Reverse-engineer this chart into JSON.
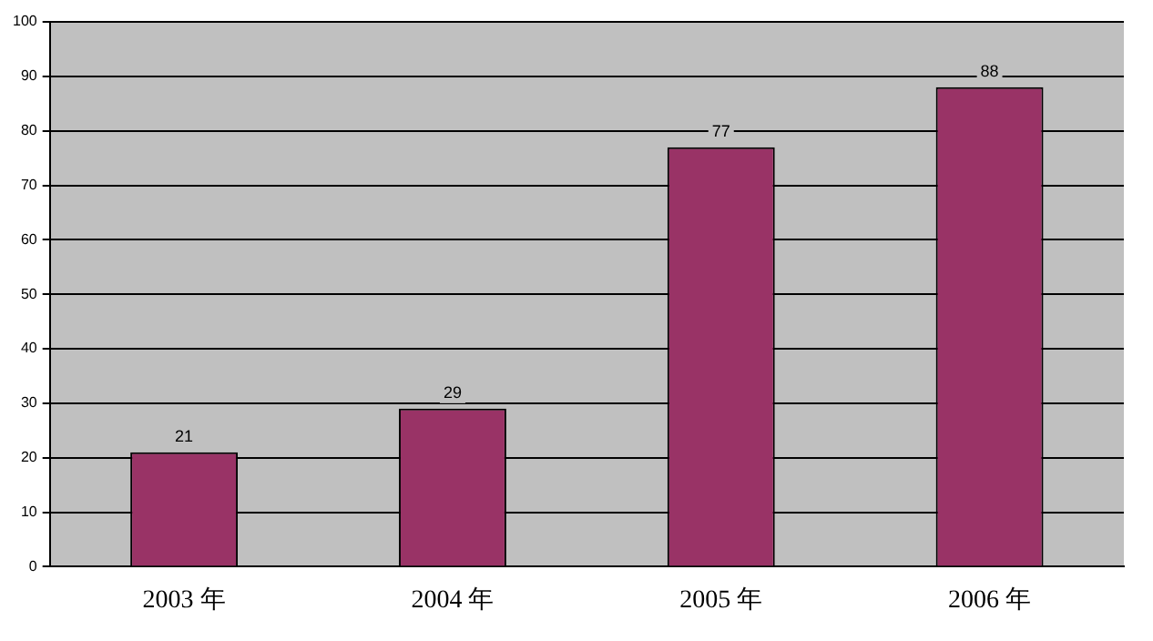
{
  "chart_data": {
    "type": "bar",
    "categories": [
      "2003 年",
      "2004 年",
      "2005 年",
      "2006 年"
    ],
    "values": [
      21,
      29,
      77,
      88
    ],
    "color": "#993366",
    "ylim": [
      0,
      100
    ],
    "yticks": [
      0,
      10,
      20,
      30,
      40,
      50,
      60,
      70,
      80,
      90,
      100
    ],
    "grid": "y",
    "data_labels": true
  }
}
